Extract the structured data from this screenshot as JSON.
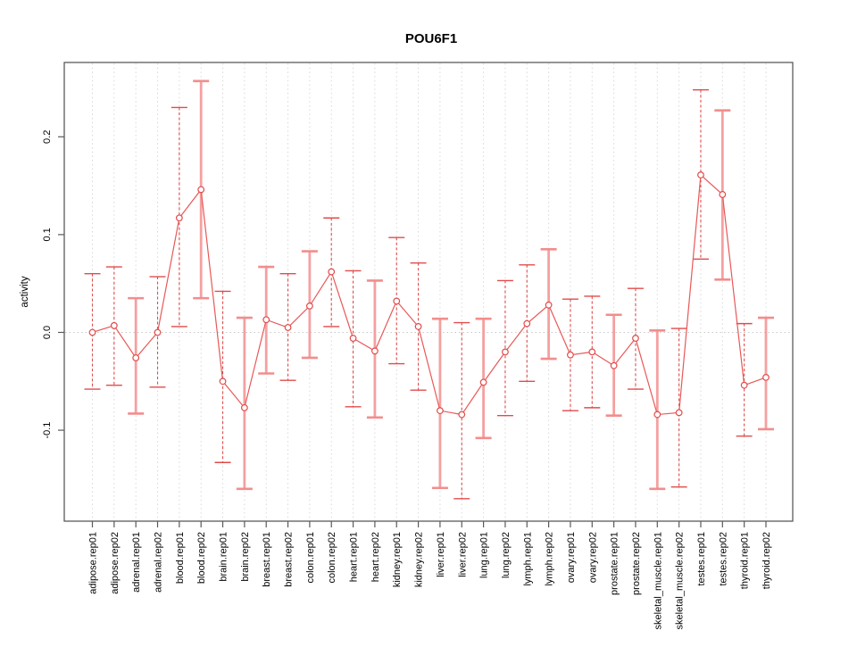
{
  "title": "POU6F1",
  "ylabel": "activity",
  "chart_data": {
    "type": "line",
    "subtype": "points-with-error-bars",
    "title": "POU6F1",
    "xlabel": "",
    "ylabel": "activity",
    "ylim": [
      -0.193,
      0.276
    ],
    "yticks": [
      {
        "value": -0.1,
        "label": "-0.1"
      },
      {
        "value": 0.0,
        "label": "0.0"
      },
      {
        "value": 0.1,
        "label": "0.1"
      },
      {
        "value": 0.2,
        "label": "0.2"
      }
    ],
    "grid": {
      "vertical_dotted_per_category": true,
      "zero_line_dotted": true,
      "legend": "none"
    },
    "categories": [
      "adipose.rep01",
      "adipose.rep02",
      "adrenal.rep01",
      "adrenal.rep02",
      "blood.rep01",
      "blood.rep02",
      "brain.rep01",
      "brain.rep02",
      "breast.rep01",
      "breast.rep02",
      "colon.rep01",
      "colon.rep02",
      "heart.rep01",
      "heart.rep02",
      "kidney.rep01",
      "kidney.rep02",
      "liver.rep01",
      "liver.rep02",
      "lung.rep01",
      "lung.rep02",
      "lymph.rep01",
      "lymph.rep02",
      "ovary.rep01",
      "ovary.rep02",
      "prostate.rep01",
      "prostate.rep02",
      "skeletal_muscle.rep01",
      "skeletal_muscle.rep02",
      "testes.rep01",
      "testes.rep02",
      "thyroid.rep01",
      "thyroid.rep02"
    ],
    "series": [
      {
        "name": "activity",
        "values": [
          0.0,
          0.007,
          -0.026,
          0.0,
          0.117,
          0.146,
          -0.05,
          -0.077,
          0.013,
          0.005,
          0.027,
          0.062,
          -0.006,
          -0.019,
          0.032,
          0.006,
          -0.08,
          -0.084,
          -0.051,
          -0.02,
          0.009,
          0.028,
          -0.023,
          -0.02,
          -0.034,
          -0.006,
          -0.084,
          -0.082,
          0.161,
          0.141,
          -0.054,
          -0.046
        ],
        "lower": [
          -0.058,
          -0.054,
          -0.083,
          -0.056,
          0.006,
          0.035,
          -0.133,
          -0.16,
          -0.042,
          -0.049,
          -0.026,
          0.006,
          -0.076,
          -0.087,
          -0.032,
          -0.059,
          -0.159,
          -0.17,
          -0.108,
          -0.085,
          -0.05,
          -0.027,
          -0.08,
          -0.077,
          -0.085,
          -0.058,
          -0.16,
          -0.158,
          0.075,
          0.054,
          -0.106,
          -0.099
        ],
        "upper": [
          0.06,
          0.067,
          0.035,
          0.057,
          0.23,
          0.257,
          0.042,
          0.015,
          0.067,
          0.06,
          0.083,
          0.117,
          0.063,
          0.053,
          0.097,
          0.071,
          0.014,
          0.01,
          0.014,
          0.053,
          0.069,
          0.085,
          0.034,
          0.037,
          0.018,
          0.045,
          0.002,
          0.004,
          0.248,
          0.227,
          0.009,
          0.015
        ],
        "bar_styles": [
          "dashed",
          "dashed",
          "solid",
          "dashed",
          "dashed",
          "solid",
          "dashed",
          "solid",
          "solid",
          "dashed",
          "solid",
          "dashed",
          "dashed",
          "solid",
          "dashed",
          "dashed",
          "solid",
          "dashed",
          "solid",
          "dashed",
          "dashed",
          "solid",
          "dashed",
          "dashed",
          "solid",
          "dashed",
          "solid",
          "dashed",
          "dashed",
          "solid",
          "dashed",
          "solid"
        ]
      }
    ],
    "colors": {
      "point_stroke": "#e14b4b",
      "point_fill": "#ffffff",
      "connect_line": "#e85858",
      "errorbar_dashed": "#e14b4b",
      "errorbar_solid": "#f5a0a0",
      "errorbar_solid_cap": "#f28d8d",
      "gridline": "#d8d8d8",
      "zero_line": "#c9c9c9",
      "box_border": "#5a5a5a",
      "tick": "#5a5a5a",
      "text": "#000000",
      "background": "#ffffff"
    }
  }
}
